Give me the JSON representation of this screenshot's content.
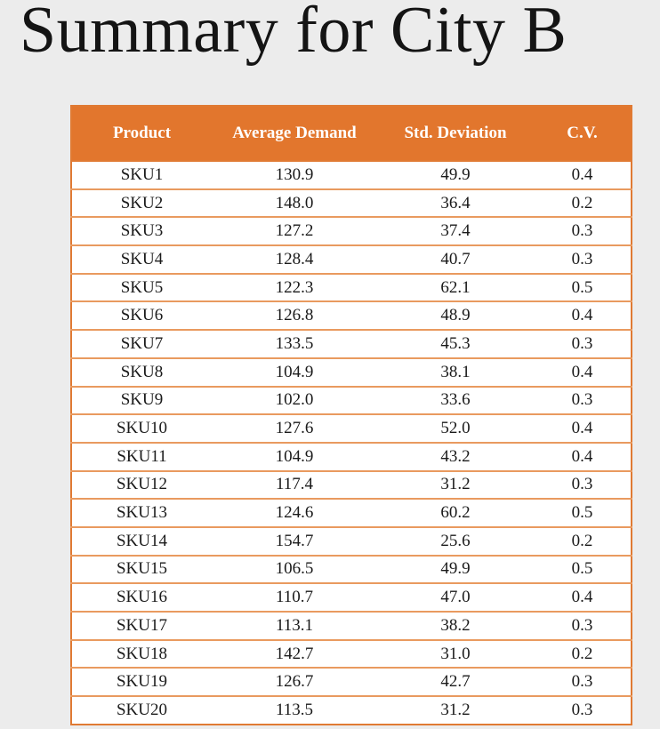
{
  "title": "Summary for City B",
  "table": {
    "headers": [
      "Product",
      "Average Demand",
      "Std. Deviation",
      "C.V."
    ],
    "rows": [
      [
        "SKU1",
        "130.9",
        "49.9",
        "0.4"
      ],
      [
        "SKU2",
        "148.0",
        "36.4",
        "0.2"
      ],
      [
        "SKU3",
        "127.2",
        "37.4",
        "0.3"
      ],
      [
        "SKU4",
        "128.4",
        "40.7",
        "0.3"
      ],
      [
        "SKU5",
        "122.3",
        "62.1",
        "0.5"
      ],
      [
        "SKU6",
        "126.8",
        "48.9",
        "0.4"
      ],
      [
        "SKU7",
        "133.5",
        "45.3",
        "0.3"
      ],
      [
        "SKU8",
        "104.9",
        "38.1",
        "0.4"
      ],
      [
        "SKU9",
        "102.0",
        "33.6",
        "0.3"
      ],
      [
        "SKU10",
        "127.6",
        "52.0",
        "0.4"
      ],
      [
        "SKU11",
        "104.9",
        "43.2",
        "0.4"
      ],
      [
        "SKU12",
        "117.4",
        "31.2",
        "0.3"
      ],
      [
        "SKU13",
        "124.6",
        "60.2",
        "0.5"
      ],
      [
        "SKU14",
        "154.7",
        "25.6",
        "0.2"
      ],
      [
        "SKU15",
        "106.5",
        "49.9",
        "0.5"
      ],
      [
        "SKU16",
        "110.7",
        "47.0",
        "0.4"
      ],
      [
        "SKU17",
        "113.1",
        "38.2",
        "0.3"
      ],
      [
        "SKU18",
        "142.7",
        "31.0",
        "0.2"
      ],
      [
        "SKU19",
        "126.7",
        "42.7",
        "0.3"
      ],
      [
        "SKU20",
        "113.5",
        "31.2",
        "0.3"
      ]
    ]
  },
  "colors": {
    "header_bg": "#e2762d",
    "header_text": "#ffffff",
    "row_border": "#e99a5f",
    "page_bg": "#ececec"
  }
}
